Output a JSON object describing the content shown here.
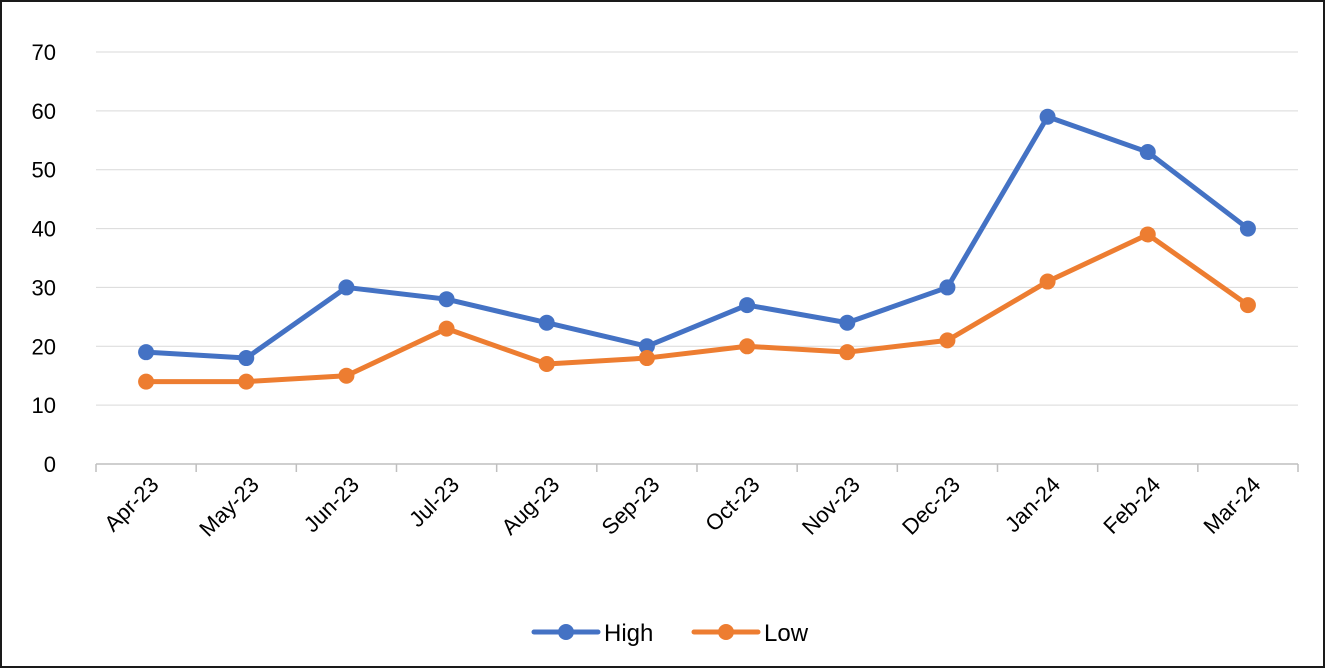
{
  "chart_data": {
    "type": "line",
    "categories": [
      "Apr-23",
      "May-23",
      "Jun-23",
      "Jul-23",
      "Aug-23",
      "Sep-23",
      "Oct-23",
      "Nov-23",
      "Dec-23",
      "Jan-24",
      "Feb-24",
      "Mar-24"
    ],
    "series": [
      {
        "name": "High",
        "color": "#4472C4",
        "values": [
          19,
          18,
          30,
          28,
          24,
          20,
          27,
          24,
          30,
          59,
          53,
          40
        ]
      },
      {
        "name": "Low",
        "color": "#ED7D31",
        "values": [
          14,
          14,
          15,
          23,
          17,
          18,
          20,
          19,
          21,
          31,
          39,
          27
        ]
      }
    ],
    "ylim": [
      0,
      70
    ],
    "yticks": [
      "0",
      "10",
      "20",
      "30",
      "40",
      "50",
      "60",
      "70"
    ],
    "grid": "horizontal",
    "legend": "bottom",
    "title": "",
    "xlabel": "",
    "ylabel": ""
  }
}
